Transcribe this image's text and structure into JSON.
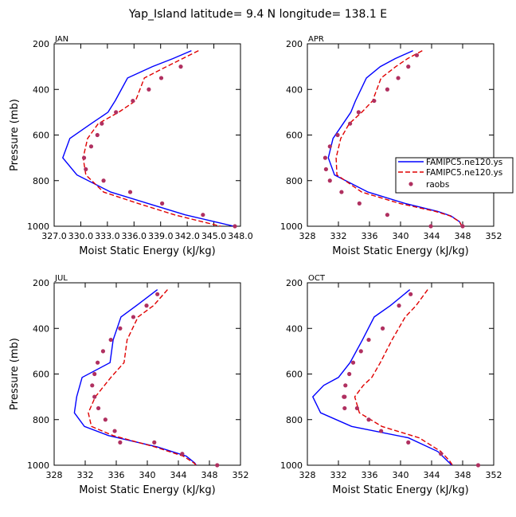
{
  "title": "Yap_Island   latitude=  9.4 N  longitude=  138.1 E",
  "colors": {
    "model1": "#0000ff",
    "model2": "#e00000",
    "obs": "#b03060"
  },
  "legend": [
    "FAMIPC5.ne120.ys",
    "FAMIPC5.ne120.ys",
    "raobs"
  ],
  "chart_data": [
    {
      "type": "line",
      "label": "JAN",
      "xlabel": "Moist Static Energy (kJ/kg)",
      "ylabel": "Pressure (mb)",
      "xlim": [
        327.03,
        348.03
      ],
      "ylim": [
        1000,
        200
      ],
      "xticks": [
        327.03,
        330.03,
        333.03,
        336.03,
        339.03,
        342.03,
        345.03,
        348.03
      ],
      "xtick_labels": [
        "327.0",
        "330.0",
        "333.0",
        "336.0",
        "339.0",
        "342.0",
        "345.0",
        "348.0"
      ],
      "yticks": [
        200,
        400,
        600,
        800,
        1000
      ],
      "ytick_labels": [
        "200",
        "400",
        "600",
        "800",
        "1000"
      ],
      "series": [
        {
          "name": "FAMIPC5.ne120.ys",
          "style": "solid",
          "x": [
            342.5,
            340.4,
            338.1,
            335.3,
            333.9,
            333.1,
            331.2,
            328.8,
            328.0,
            329.6,
            333.4,
            337.6,
            341.8,
            345.1,
            347.3
          ],
          "y": [
            230,
            265,
            300,
            350,
            450,
            500,
            550,
            615,
            700,
            775,
            850,
            900,
            950,
            980,
            1000
          ]
        },
        {
          "name": "FAMIPC5.ne120.ys",
          "style": "dashed",
          "x": [
            343.3,
            341.5,
            339.7,
            337.2,
            336.2,
            334.3,
            332.0,
            330.8,
            330.3,
            330.6,
            332.6,
            336.5,
            340.6,
            343.7,
            345.8
          ],
          "y": [
            230,
            265,
            300,
            350,
            450,
            500,
            550,
            615,
            700,
            775,
            850,
            900,
            950,
            980,
            1000
          ]
        },
        {
          "name": "raobs",
          "style": "points",
          "x": [
            341.3,
            339.1,
            337.7,
            335.9,
            334.0,
            332.4,
            331.9,
            331.2,
            330.4,
            330.6,
            332.6,
            335.6,
            339.2,
            343.8,
            347.4
          ],
          "y": [
            300,
            350,
            400,
            450,
            500,
            550,
            600,
            650,
            700,
            750,
            800,
            850,
            900,
            950,
            1000
          ]
        }
      ]
    },
    {
      "type": "line",
      "label": "APR",
      "xlabel": "Moist Static Energy (kJ/kg)",
      "ylabel": "Pressure (mb)",
      "xlim": [
        328,
        352
      ],
      "ylim": [
        1000,
        200
      ],
      "xticks": [
        328,
        332,
        336,
        340,
        344,
        348,
        352
      ],
      "xtick_labels": [
        "328",
        "332",
        "336",
        "340",
        "344",
        "348",
        "352"
      ],
      "yticks": [
        200,
        400,
        600,
        800,
        1000
      ],
      "ytick_labels": [
        "200",
        "400",
        "600",
        "800",
        "1000"
      ],
      "series": [
        {
          "name": "FAMIPC5.ne120.ys",
          "style": "solid",
          "x": [
            341.6,
            339.3,
            337.4,
            335.6,
            334.2,
            333.6,
            332.6,
            331.3,
            330.7,
            331.5,
            335.8,
            340.6,
            344.8,
            346.5,
            347.6,
            347.9
          ],
          "y": [
            230,
            265,
            300,
            350,
            450,
            500,
            550,
            615,
            700,
            775,
            850,
            900,
            935,
            955,
            980,
            1000
          ]
        },
        {
          "name": "FAMIPC5.ne120.ys",
          "style": "dashed",
          "x": [
            342.8,
            340.9,
            339.4,
            337.5,
            336.4,
            335.0,
            333.4,
            332.3,
            331.7,
            331.8,
            335.0,
            339.9,
            344.5,
            346.4,
            347.6,
            347.9
          ],
          "y": [
            230,
            265,
            300,
            350,
            450,
            500,
            550,
            615,
            700,
            775,
            850,
            900,
            935,
            955,
            980,
            1000
          ]
        },
        {
          "name": "raobs",
          "style": "points",
          "x": [
            342.1,
            341.0,
            339.7,
            338.3,
            336.6,
            334.6,
            333.5,
            331.9,
            330.9,
            330.3,
            330.4,
            330.9,
            332.4,
            334.7,
            338.3,
            343.9,
            348.0
          ],
          "y": [
            250,
            300,
            350,
            400,
            450,
            500,
            550,
            600,
            650,
            700,
            750,
            800,
            850,
            900,
            950,
            1000,
            1000
          ]
        }
      ]
    },
    {
      "type": "line",
      "label": "JUL",
      "xlabel": "Moist Static Energy (kJ/kg)",
      "ylabel": "Pressure (mb)",
      "xlim": [
        328,
        352
      ],
      "ylim": [
        1000,
        200
      ],
      "xticks": [
        328,
        332,
        336,
        340,
        344,
        348,
        352
      ],
      "xtick_labels": [
        "328",
        "332",
        "336",
        "340",
        "344",
        "348",
        "352"
      ],
      "yticks": [
        200,
        400,
        600,
        800,
        1000
      ],
      "ytick_labels": [
        "200",
        "400",
        "600",
        "800",
        "1000"
      ],
      "series": [
        {
          "name": "FAMIPC5.ne120.ys",
          "style": "solid",
          "x": [
            341.3,
            338.6,
            336.6,
            335.6,
            335.2,
            331.6,
            330.9,
            330.6,
            331.9,
            335.0,
            341.3,
            345.0,
            346.1,
            346.3
          ],
          "y": [
            230,
            300,
            350,
            450,
            550,
            615,
            700,
            770,
            830,
            870,
            920,
            960,
            990,
            1000
          ]
        },
        {
          "name": "FAMIPC5.ne120.ys",
          "style": "dashed",
          "x": [
            342.6,
            340.8,
            338.8,
            337.4,
            337.0,
            335.3,
            333.3,
            332.4,
            332.8,
            335.6,
            341.0,
            344.6,
            346.0,
            346.3
          ],
          "y": [
            230,
            300,
            350,
            450,
            550,
            615,
            700,
            770,
            830,
            870,
            920,
            960,
            990,
            1000
          ]
        },
        {
          "name": "raobs",
          "style": "points",
          "x": [
            341.3,
            339.9,
            338.2,
            336.5,
            335.3,
            334.3,
            333.6,
            333.2,
            332.9,
            333.2,
            333.7,
            334.6,
            335.8,
            336.5,
            340.9,
            344.5,
            349.0
          ],
          "y": [
            250,
            300,
            350,
            400,
            450,
            500,
            550,
            600,
            650,
            700,
            750,
            800,
            850,
            900,
            900,
            950,
            1000
          ]
        }
      ]
    },
    {
      "type": "line",
      "label": "OCT",
      "xlabel": "Moist Static Energy (kJ/kg)",
      "ylabel": "Pressure (mb)",
      "xlim": [
        328,
        352
      ],
      "ylim": [
        1000,
        200
      ],
      "xticks": [
        328,
        332,
        336,
        340,
        344,
        348,
        352
      ],
      "xtick_labels": [
        "328",
        "332",
        "336",
        "340",
        "344",
        "348",
        "352"
      ],
      "yticks": [
        200,
        400,
        600,
        800,
        1000
      ],
      "ytick_labels": [
        "200",
        "400",
        "600",
        "800",
        "1000"
      ],
      "series": [
        {
          "name": "FAMIPC5.ne120.ys",
          "style": "solid",
          "x": [
            341.2,
            338.7,
            336.6,
            335.1,
            333.5,
            332.0,
            330.1,
            328.7,
            329.7,
            333.7,
            341.0,
            344.8,
            346.0,
            346.6
          ],
          "y": [
            230,
            300,
            350,
            450,
            550,
            615,
            650,
            700,
            770,
            830,
            880,
            940,
            980,
            1000
          ]
        },
        {
          "name": "FAMIPC5.ne120.ys",
          "style": "dashed",
          "x": [
            343.5,
            342.0,
            340.6,
            338.9,
            337.4,
            336.3,
            335.2,
            334.1,
            334.7,
            337.6,
            342.4,
            345.2,
            346.3,
            346.7
          ],
          "y": [
            230,
            300,
            350,
            450,
            550,
            615,
            650,
            700,
            770,
            830,
            880,
            940,
            980,
            1000
          ]
        },
        {
          "name": "raobs",
          "style": "points",
          "x": [
            341.3,
            339.8,
            337.7,
            335.9,
            334.9,
            333.9,
            333.4,
            332.9,
            332.8,
            332.7,
            332.8,
            334.4,
            335.9,
            337.5,
            341.0,
            345.2,
            350.0
          ],
          "y": [
            250,
            300,
            400,
            450,
            500,
            550,
            600,
            650,
            700,
            700,
            750,
            750,
            800,
            850,
            900,
            950,
            1000
          ]
        }
      ]
    }
  ]
}
